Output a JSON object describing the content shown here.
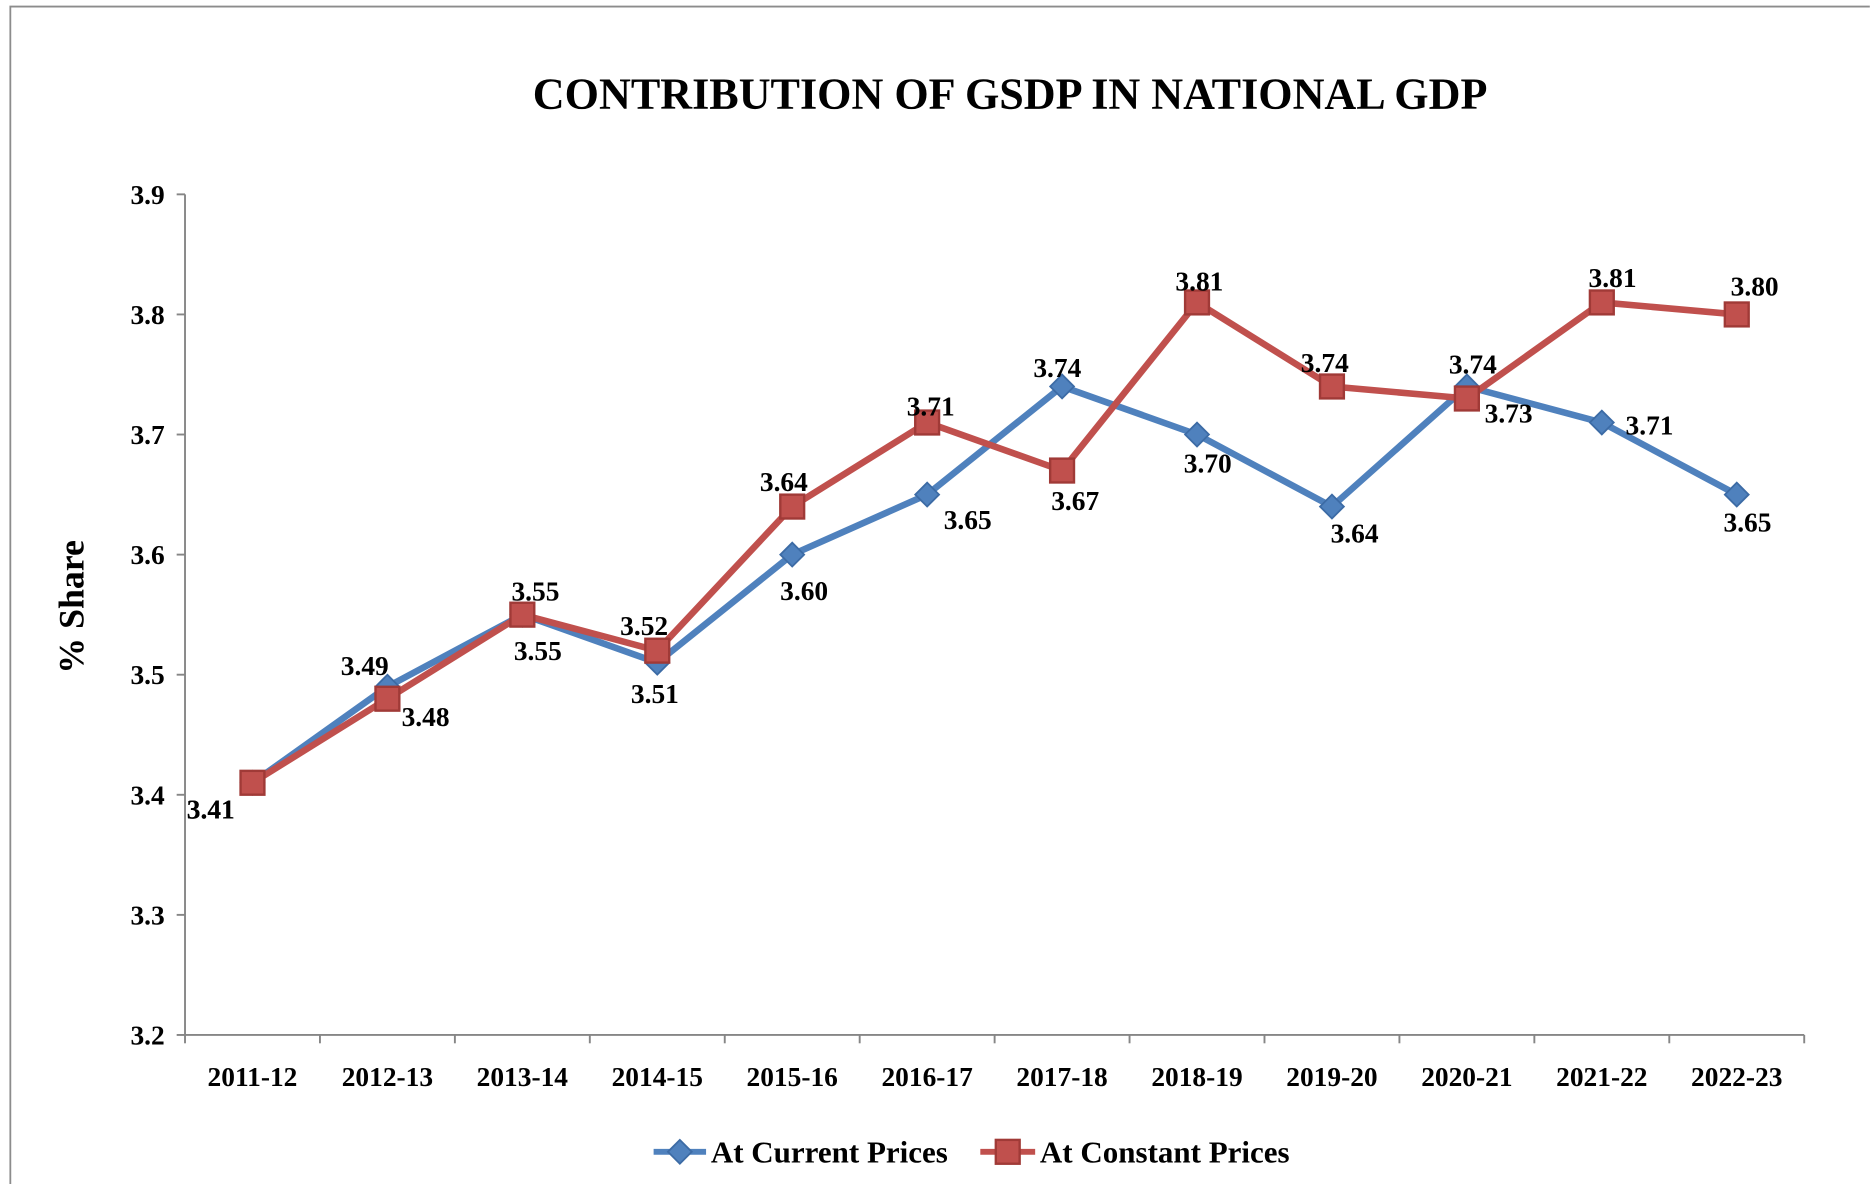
{
  "chart_data": {
    "type": "line",
    "title": "CONTRIBUTION OF GSDP IN NATIONAL GDP",
    "xlabel": "",
    "ylabel": "% Share",
    "categories": [
      "2011-12",
      "2012-13",
      "2013-14",
      "2014-15",
      "2015-16",
      "2016-17",
      "2017-18",
      "2018-19",
      "2019-20",
      "2020-21",
      "2021-22",
      "2022-23"
    ],
    "ylim": [
      3.2,
      3.9
    ],
    "y_ticks": [
      "3.2",
      "3.3",
      "3.4",
      "3.5",
      "3.6",
      "3.7",
      "3.8",
      "3.9"
    ],
    "grid": false,
    "legend_position": "bottom",
    "series": [
      {
        "name": "At Current Prices",
        "marker": "diamond",
        "color": "#4F81BD",
        "values": [
          3.41,
          3.49,
          3.55,
          3.51,
          3.6,
          3.65,
          3.74,
          3.7,
          3.64,
          3.74,
          3.71,
          3.65
        ],
        "data_labels": [
          "3.41",
          "3.49",
          "3.55",
          "3.51",
          "3.60",
          "3.65",
          "3.74",
          "3.70",
          "3.64",
          "3.74",
          "3.71",
          "3.65"
        ]
      },
      {
        "name": "At Constant Prices",
        "marker": "square",
        "color": "#C0504D",
        "values": [
          3.41,
          3.48,
          3.55,
          3.52,
          3.64,
          3.71,
          3.67,
          3.81,
          3.74,
          3.73,
          3.81,
          3.8
        ],
        "data_labels": [
          "3.41",
          "3.48",
          "3.55",
          "3.52",
          "3.64",
          "3.71",
          "3.67",
          "3.81",
          "3.74",
          "3.73",
          "3.81",
          "3.80"
        ]
      }
    ]
  }
}
